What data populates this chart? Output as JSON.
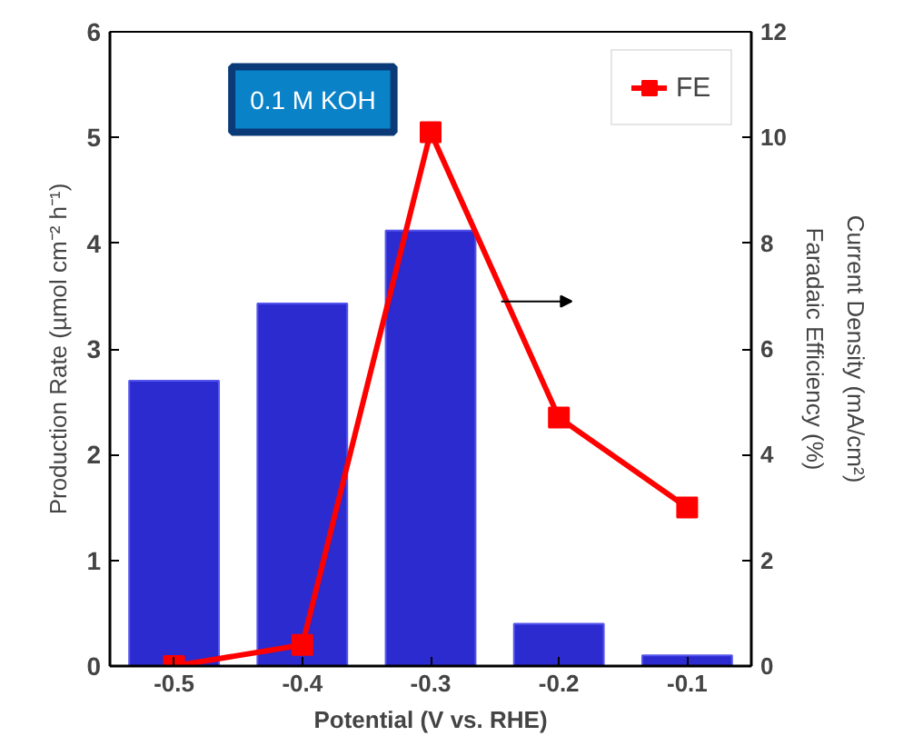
{
  "chart_data": {
    "type": "bar",
    "xlabel": "Potential (V vs. RHE)",
    "ylabel": "Production Rate (µmol cm⁻² h⁻¹)",
    "y2label": "Faradaic Efficiency (%)",
    "annotations": [
      "0.1 M KOH",
      "Current Density (mA/cm²)"
    ],
    "x": [
      -0.5,
      -0.4,
      -0.3,
      -0.2,
      -0.1
    ],
    "xlim": [
      -0.55,
      -0.05
    ],
    "xticks": [
      -0.5,
      -0.4,
      -0.3,
      -0.2,
      -0.1
    ],
    "ylim": [
      0,
      6
    ],
    "yticks": [
      0,
      1,
      2,
      3,
      4,
      5,
      6
    ],
    "y2lim": [
      0,
      12
    ],
    "y2ticks": [
      0,
      2,
      4,
      6,
      8,
      10,
      12
    ],
    "series": [
      {
        "color": "#2b2bd0",
        "values": [
          2.7,
          3.43,
          4.12,
          0.4,
          0.1
        ]
      },
      {
        "type": "line",
        "name": "FE",
        "color": "#ff0000",
        "axis": "y2",
        "marker": "square",
        "values": [
          0,
          0.4,
          10.1,
          4.7,
          3.0
        ]
      }
    ],
    "legend": "top right",
    "grid": false
  }
}
